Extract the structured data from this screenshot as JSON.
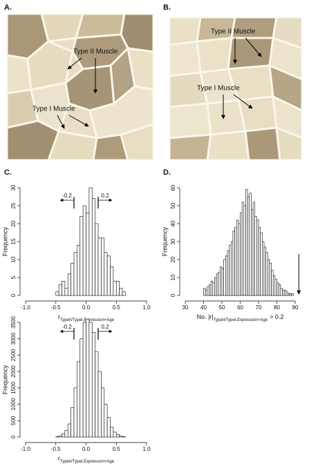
{
  "panels": {
    "a": {
      "label": "A.",
      "type2": "Type II Muscle",
      "type1": "Type I Muscle"
    },
    "b": {
      "label": "B.",
      "type2": "Type II Muscle",
      "type1": "Type I Muscle"
    },
    "c": {
      "label": "C."
    },
    "d": {
      "label": "D."
    }
  },
  "chart_data": [
    {
      "type": "histogram",
      "ylabel": "Frequency",
      "xlabel": "r",
      "xlabel_sub": "TypeII/TypeI,Expression+Age",
      "bins": [
        -0.5,
        -0.45,
        -0.4,
        -0.35,
        -0.3,
        -0.25,
        -0.2,
        -0.15,
        -0.1,
        -0.05,
        0,
        0.05,
        0.1,
        0.15,
        0.2,
        0.25,
        0.3,
        0.35,
        0.4,
        0.45,
        0.5,
        0.55,
        0.6,
        0.65,
        0.7
      ],
      "counts": [
        1,
        3,
        4,
        2,
        6,
        9,
        12,
        14,
        22,
        25,
        23,
        30,
        27,
        20,
        16,
        16,
        12,
        11,
        8,
        4,
        4,
        2,
        1,
        0
      ],
      "xlim": [
        -1,
        1
      ],
      "xticks": [
        {
          "value": -1,
          "label": "-1.0"
        },
        -0.5,
        {
          "value": 0,
          "label": "0.0"
        },
        0.5,
        {
          "value": 1,
          "label": "1.0"
        }
      ],
      "ylim": [
        0,
        30
      ],
      "yticks": [
        0,
        5,
        10,
        15,
        20,
        25,
        30
      ],
      "thresholds": [
        -0.2,
        0.2
      ]
    },
    {
      "type": "histogram",
      "ylabel": "Frequency",
      "xlabel": "No. |r|",
      "xlabel_sub": "TypeII/TypeI,Expression+Age",
      "xlabel_tail": "> 0.2",
      "bins": [
        40,
        41,
        42,
        43,
        44,
        45,
        46,
        47,
        48,
        49,
        50,
        51,
        52,
        53,
        54,
        55,
        56,
        57,
        58,
        59,
        60,
        61,
        62,
        63,
        64,
        65,
        66,
        67,
        68,
        69,
        70,
        71,
        72,
        73,
        74,
        75,
        76,
        77,
        78,
        79,
        80,
        81,
        82,
        83,
        84,
        85,
        86,
        87,
        88,
        89,
        90
      ],
      "counts": [
        4,
        3,
        5,
        6,
        8,
        7,
        10,
        12,
        13,
        16,
        15,
        20,
        22,
        25,
        28,
        30,
        36,
        38,
        42,
        40,
        46,
        52,
        50,
        59,
        55,
        57,
        48,
        52,
        44,
        42,
        38,
        35,
        30,
        27,
        24,
        20,
        18,
        14,
        11,
        9,
        7,
        6,
        4,
        3,
        3,
        2,
        1,
        1,
        1,
        0
      ],
      "xlim": [
        30,
        90
      ],
      "xticks": [
        30,
        40,
        50,
        60,
        70,
        80,
        90
      ],
      "ylim": [
        0,
        60
      ],
      "yticks": [
        0,
        10,
        20,
        30,
        40,
        50,
        60
      ],
      "observed": 92
    },
    {
      "type": "histogram",
      "ylabel": "Frequency",
      "xlabel": "r",
      "xlabel_sub": "TypeII/TypeI,Expression+Age",
      "bins": [
        -0.5,
        -0.45,
        -0.4,
        -0.35,
        -0.3,
        -0.25,
        -0.2,
        -0.15,
        -0.1,
        -0.05,
        0,
        0.05,
        0.1,
        0.15,
        0.2,
        0.25,
        0.3,
        0.35,
        0.4,
        0.45,
        0.5,
        0.55,
        0.6,
        0.65
      ],
      "counts": [
        10,
        40,
        100,
        200,
        400,
        900,
        1500,
        2300,
        3000,
        3500,
        3600,
        3500,
        3200,
        2600,
        2000,
        1500,
        1000,
        600,
        300,
        150,
        80,
        30,
        10
      ],
      "xlim": [
        -1,
        1
      ],
      "xticks": [
        {
          "value": -1,
          "label": "-1.0"
        },
        -0.5,
        {
          "value": 0,
          "label": "0.0"
        },
        0.5,
        {
          "value": 1,
          "label": "1.0"
        }
      ],
      "ylim": [
        0,
        3500
      ],
      "yticks": [
        0,
        500,
        1000,
        1500,
        2000,
        2500,
        3000,
        3500
      ],
      "thresholds": [
        -0.2,
        0.2
      ]
    }
  ]
}
